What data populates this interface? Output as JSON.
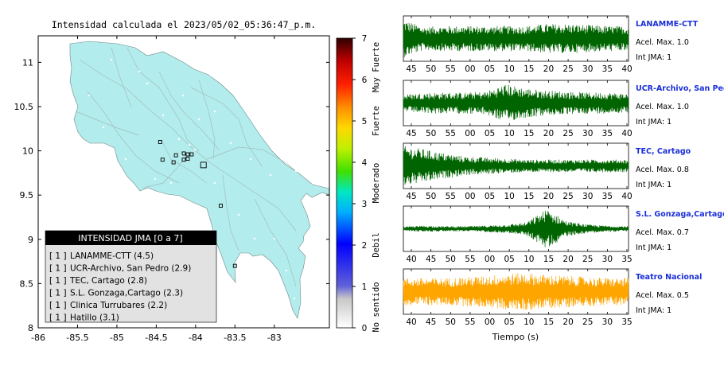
{
  "header": {
    "title": "Intensidad calculada el 2023/05/02_05:36:47_p.m."
  },
  "map": {
    "xticks": [
      "-86",
      "-85.5",
      "-85",
      "-84.5",
      "-84",
      "-83.5",
      "-83"
    ],
    "yticks": [
      "11",
      "10.5",
      "10",
      "9.5",
      "9",
      "8.5",
      "8"
    ],
    "xlim": [
      -86,
      -82.3
    ],
    "ylim": [
      8,
      11.3
    ],
    "land_color": "#b3ecec",
    "stations": [
      {
        "lon": -84.45,
        "lat": 10.1
      },
      {
        "lon": -84.42,
        "lat": 9.9
      },
      {
        "lon": -84.25,
        "lat": 9.95
      },
      {
        "lon": -84.15,
        "lat": 9.97
      },
      {
        "lon": -84.1,
        "lat": 9.96
      },
      {
        "lon": -84.05,
        "lat": 9.96
      },
      {
        "lon": -84.15,
        "lat": 9.9
      },
      {
        "lon": -84.1,
        "lat": 9.91
      },
      {
        "lon": -84.28,
        "lat": 9.87
      },
      {
        "lon": -83.9,
        "lat": 9.84
      },
      {
        "lon": -83.68,
        "lat": 9.38
      },
      {
        "lon": -83.5,
        "lat": 8.7
      }
    ]
  },
  "legend": {
    "title": "INTENSIDAD JMA [0 a 7]",
    "items": [
      {
        "level": "[ 1 ]",
        "name": "LANAMME-CTT (4.5)"
      },
      {
        "level": "[ 1 ]",
        "name": "UCR-Archivo, San Pedro (2.9)"
      },
      {
        "level": "[ 1 ]",
        "name": "TEC, Cartago (2.8)"
      },
      {
        "level": "[ 1 ]",
        "name": "S.L. Gonzaga,Cartago (2.3)"
      },
      {
        "level": "[ 1 ]",
        "name": "Clinica Turrubares (2.2)"
      },
      {
        "level": "[ 1 ]",
        "name": "Hatillo (3.1)"
      }
    ]
  },
  "colorbar": {
    "ticks": [
      "0",
      "1",
      "2",
      "3",
      "4",
      "5",
      "6",
      "7"
    ],
    "labels": [
      "No sentido",
      "Debil",
      "Moderado",
      "Fuerte",
      "Muy Fuerte"
    ]
  },
  "chart_data": {
    "type": "line",
    "xlabel": "Tiempo (s)",
    "traces": [
      {
        "station": "LANAMME-CTT",
        "accel": "Acel. Max. 1.0",
        "jma": "Int JMA: 1",
        "color": "#006400",
        "ticks": [
          "45",
          "50",
          "55",
          "00",
          "05",
          "10",
          "15",
          "20",
          "25",
          "30",
          "35",
          "40"
        ],
        "envelope": [
          0.9,
          0.55,
          0.6,
          0.6,
          0.6,
          0.6,
          0.6,
          0.7,
          0.7,
          0.65,
          0.6,
          0.6
        ]
      },
      {
        "station": "UCR-Archivo, San Pedro",
        "accel": "Acel. Max. 1.0",
        "jma": "Int JMA: 1",
        "color": "#006400",
        "ticks": [
          "45",
          "50",
          "55",
          "00",
          "05",
          "10",
          "15",
          "20",
          "25",
          "30",
          "35",
          "40"
        ],
        "envelope": [
          0.4,
          0.5,
          0.5,
          0.5,
          0.55,
          0.9,
          0.7,
          0.6,
          0.55,
          0.5,
          0.5,
          0.45
        ]
      },
      {
        "station": "TEC, Cartago",
        "accel": "Acel. Max. 0.8",
        "jma": "Int JMA: 1",
        "color": "#006400",
        "ticks": [
          "45",
          "50",
          "55",
          "00",
          "05",
          "10",
          "15",
          "20",
          "25",
          "30",
          "35",
          "40"
        ],
        "envelope": [
          0.95,
          0.8,
          0.6,
          0.45,
          0.4,
          0.35,
          0.3,
          0.3,
          0.3,
          0.3,
          0.3,
          0.3
        ]
      },
      {
        "station": "S.L. Gonzaga,Cartago",
        "accel": "Acel. Max. 0.7",
        "jma": "Int JMA: 1",
        "color": "#006400",
        "ticks": [
          "40",
          "45",
          "50",
          "55",
          "00",
          "05",
          "10",
          "15",
          "20",
          "25",
          "30",
          "35"
        ],
        "envelope": [
          0.1,
          0.15,
          0.12,
          0.12,
          0.15,
          0.2,
          0.3,
          0.95,
          0.35,
          0.2,
          0.15,
          0.12
        ]
      },
      {
        "station": "Teatro Nacional",
        "accel": "Acel. Max. 0.5",
        "jma": "Int JMA: 1",
        "color": "#FFA500",
        "ticks": [
          "40",
          "45",
          "50",
          "55",
          "00",
          "05",
          "10",
          "15",
          "20",
          "25",
          "30",
          "35"
        ],
        "envelope": [
          0.65,
          0.65,
          0.65,
          0.7,
          0.75,
          0.85,
          0.9,
          0.8,
          0.75,
          0.7,
          0.65,
          0.65
        ]
      }
    ]
  }
}
